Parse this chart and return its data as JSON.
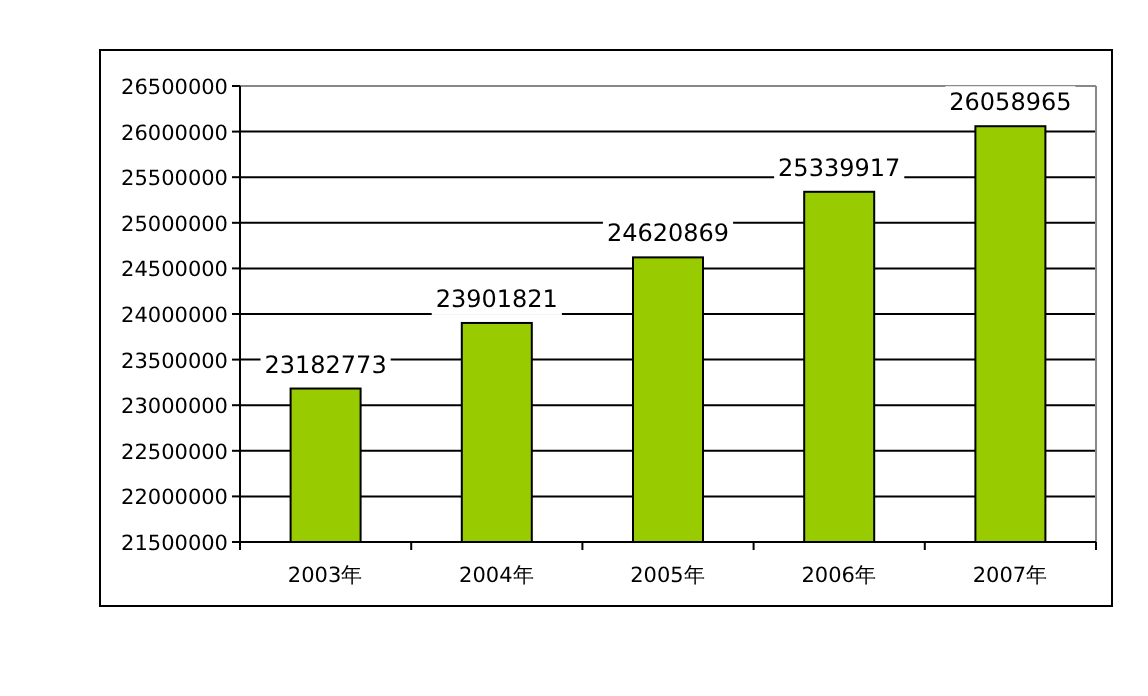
{
  "chart_data": {
    "type": "bar",
    "categories": [
      "2003年",
      "2004年",
      "2005年",
      "2006年",
      "2007年"
    ],
    "values": [
      23182773,
      23901821,
      24620869,
      25339917,
      26058965
    ],
    "color": "#99cc00",
    "data_labels": true,
    "grid": "y",
    "ylim": [
      21500000,
      26500000
    ],
    "yticks": [
      21500000,
      22000000,
      22500000,
      23000000,
      23500000,
      24000000,
      24500000,
      25000000,
      25500000,
      26000000,
      26500000
    ]
  }
}
